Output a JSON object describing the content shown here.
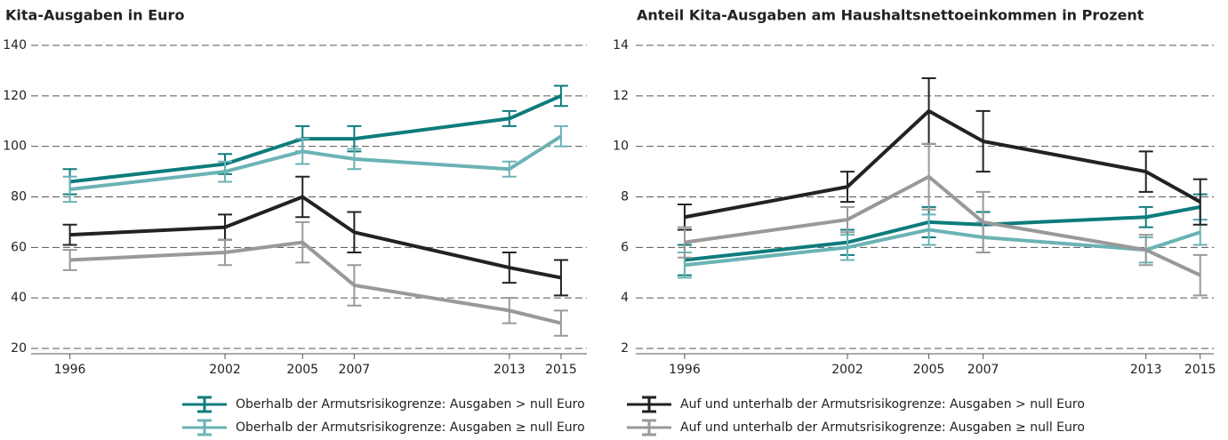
{
  "chart_data": [
    {
      "type": "line",
      "title": "Kita-Ausgaben in Euro",
      "x": [
        1996,
        2002,
        2005,
        2007,
        2013,
        2015
      ],
      "xlim": [
        1994.5,
        2016
      ],
      "xticks": [
        1996,
        2002,
        2005,
        2007,
        2013,
        2015
      ],
      "ylim": [
        20,
        140
      ],
      "yticks": [
        20,
        40,
        60,
        80,
        100,
        120,
        140
      ],
      "grid": true,
      "series": [
        {
          "name": "Oberhalb der Armutsrisikogrenze: Ausgaben > null Euro",
          "color": "#0e7c7b",
          "values": [
            86,
            93,
            103,
            103,
            111,
            120
          ],
          "errors": [
            5,
            4,
            5,
            5,
            3,
            4
          ]
        },
        {
          "name": "Oberhalb der Armutsrisikogrenze: Ausgaben ≥ null Euro",
          "color": "#6bb3b5",
          "values": [
            83,
            90,
            98,
            95,
            91,
            104
          ],
          "errors": [
            5,
            4,
            5,
            4,
            3,
            4
          ]
        },
        {
          "name": "Auf und unterhalb der Armutsrisikogrenze: Ausgaben > null Euro",
          "color": "#222222",
          "values": [
            65,
            68,
            80,
            66,
            52,
            48
          ],
          "errors": [
            4,
            5,
            8,
            8,
            6,
            7
          ]
        },
        {
          "name": "Auf und unterhalb der Armutsrisikogrenze: Ausgaben ≥ null Euro",
          "color": "#999999",
          "values": [
            55,
            58,
            62,
            45,
            35,
            30
          ],
          "errors": [
            4,
            5,
            8,
            8,
            5,
            5
          ]
        }
      ]
    },
    {
      "type": "line",
      "title": "Anteil Kita-Ausgaben am Haushaltsnettoeinkommen in Prozent",
      "x": [
        1996,
        2002,
        2005,
        2007,
        2013,
        2015
      ],
      "xlim": [
        1994.2,
        2015.5
      ],
      "xticks": [
        1996,
        2002,
        2005,
        2007,
        2013,
        2015
      ],
      "ylim": [
        2,
        14
      ],
      "yticks": [
        2,
        4,
        6,
        8,
        10,
        12,
        14
      ],
      "grid": true,
      "series": [
        {
          "color": "#0e7c7b",
          "values": [
            5.5,
            6.2,
            7.0,
            6.9,
            7.2,
            7.6
          ],
          "errors": [
            0.6,
            0.5,
            0.6,
            0.5,
            0.4,
            0.5
          ]
        },
        {
          "color": "#6bb3b5",
          "values": [
            5.3,
            6.0,
            6.7,
            6.4,
            5.9,
            6.6
          ],
          "errors": [
            0.5,
            0.5,
            0.6,
            0.6,
            0.5,
            0.5
          ]
        },
        {
          "color": "#222222",
          "values": [
            7.2,
            8.4,
            11.4,
            10.2,
            9.0,
            7.8
          ],
          "errors": [
            0.5,
            0.6,
            1.3,
            1.2,
            0.8,
            0.9
          ]
        },
        {
          "color": "#999999",
          "values": [
            6.2,
            7.1,
            8.8,
            7.0,
            5.9,
            4.9
          ],
          "errors": [
            0.6,
            0.5,
            1.3,
            1.2,
            0.6,
            0.8
          ]
        }
      ]
    }
  ]
}
